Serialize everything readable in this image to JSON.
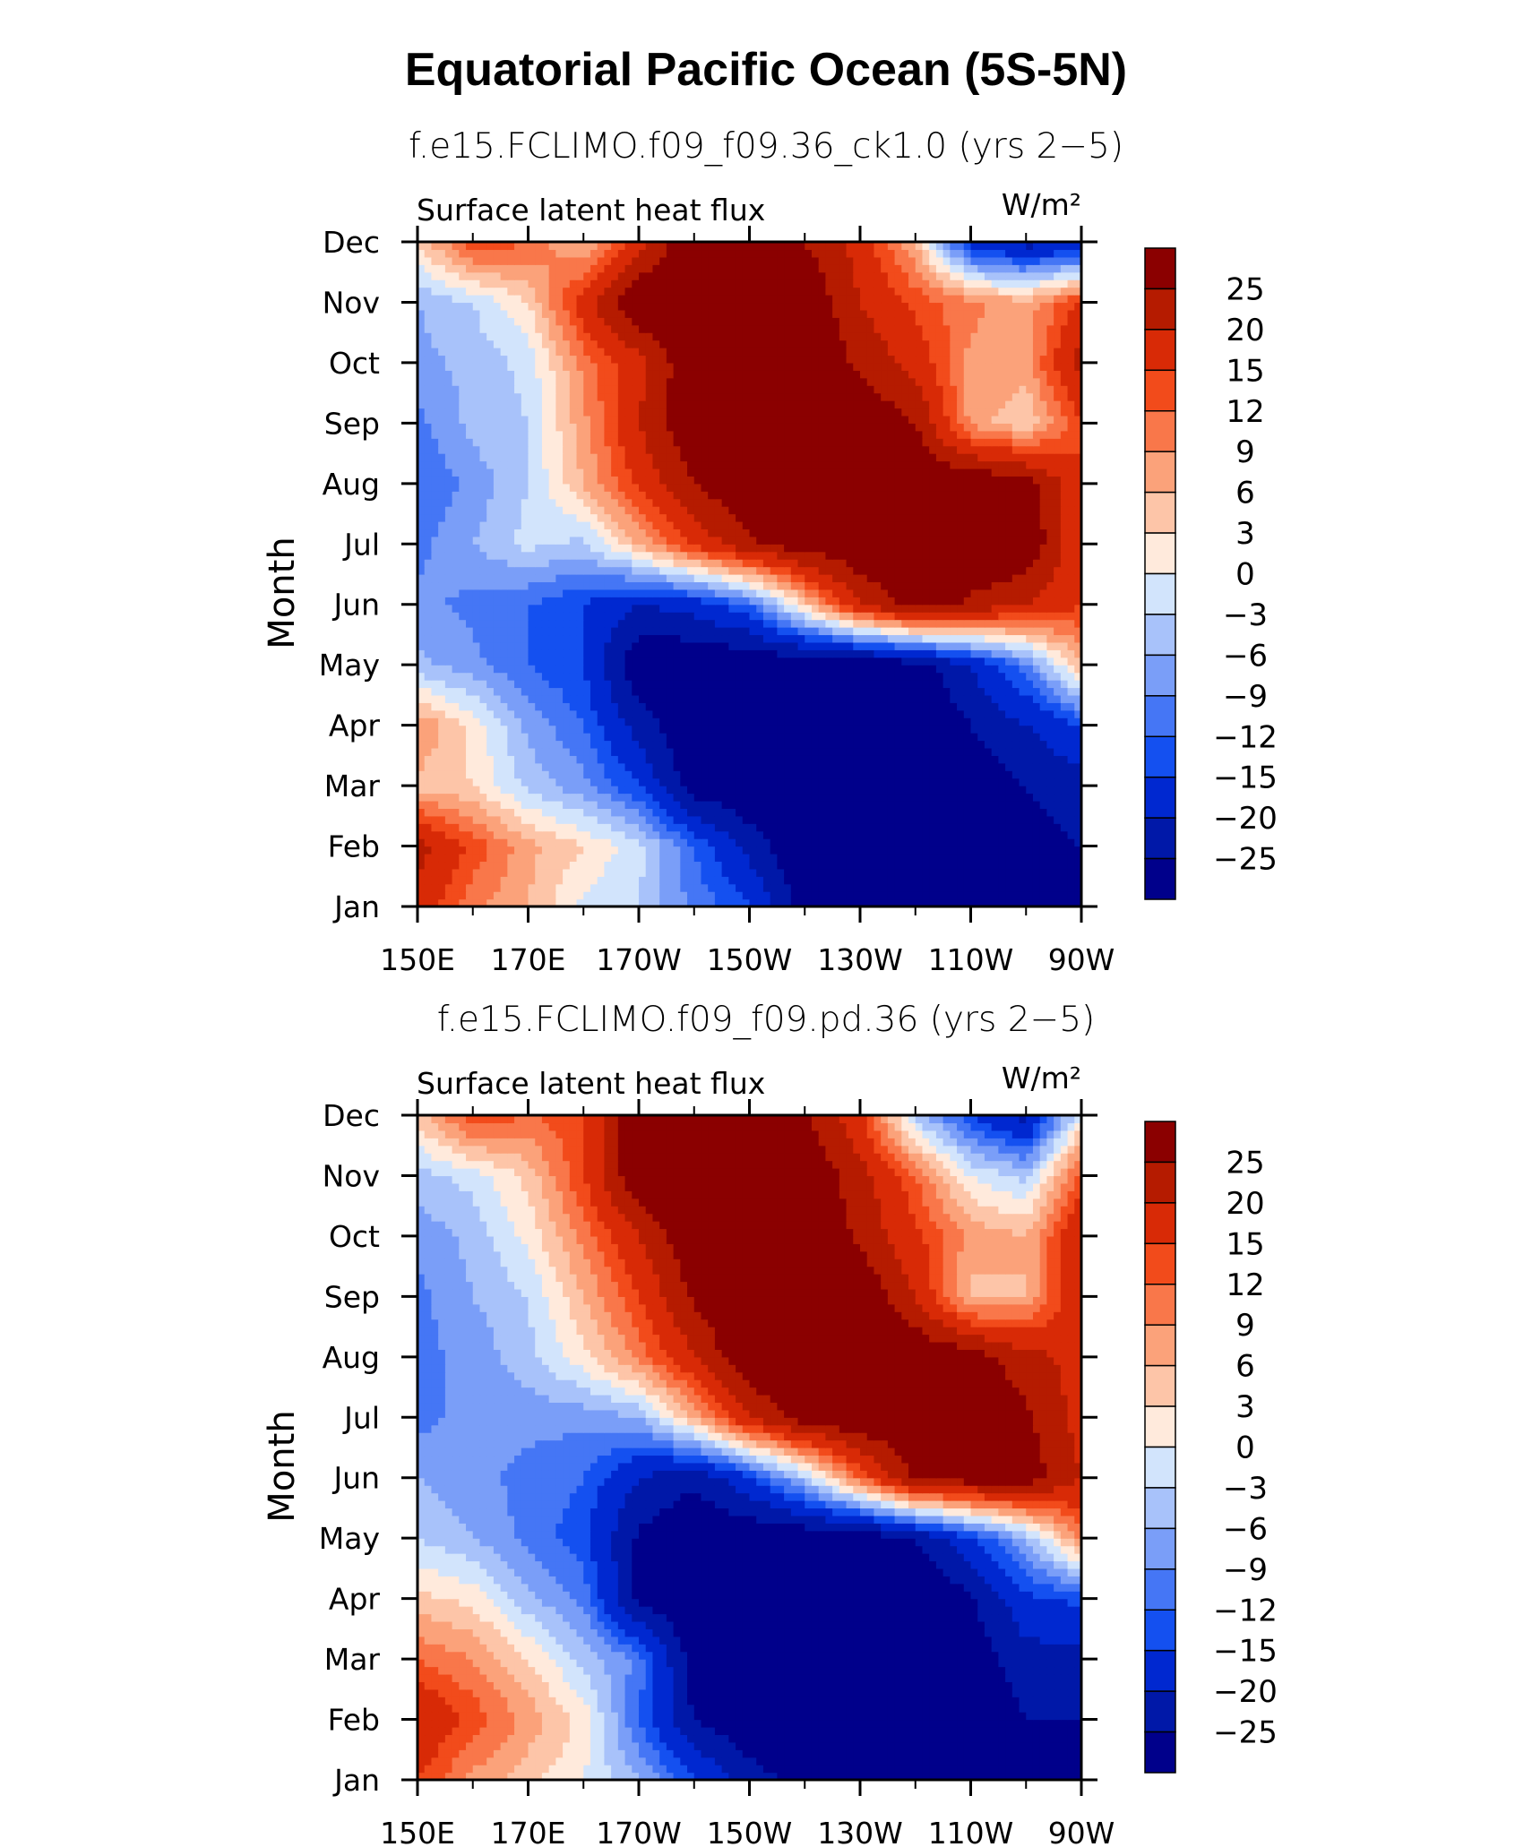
{
  "figure_title": "Equatorial Pacific Ocean (5S-5N)",
  "chart_data": [
    {
      "type": "heatmap",
      "title": "f.e15.FCLIMO.f09_f09.36_ck1.0 (yrs 2−5)",
      "left_label": "Surface latent heat flux",
      "units": "W/m²",
      "ylabel": "Month",
      "xlabel": "",
      "x_tick_labels": [
        "150E",
        "170E",
        "170W",
        "150W",
        "130W",
        "110W",
        "90W"
      ],
      "x_ticks_deg_east": [
        150,
        170,
        190,
        210,
        230,
        250,
        270
      ],
      "xlim_deg_east": [
        150,
        270
      ],
      "y_tick_labels": [
        "Jan",
        "Feb",
        "Mar",
        "Apr",
        "May",
        "Jun",
        "Jul",
        "Aug",
        "Sep",
        "Oct",
        "Nov",
        "Dec"
      ],
      "grid_x_deg_east": [
        150,
        160,
        170,
        180,
        190,
        200,
        210,
        220,
        230,
        240,
        250,
        260,
        270
      ],
      "grid_y_month": [
        "Jan",
        "Feb",
        "Mar",
        "Apr",
        "May",
        "Jun",
        "Jul",
        "Aug",
        "Sep",
        "Oct",
        "Nov",
        "Dec"
      ],
      "values": [
        [
          18,
          10,
          6,
          -1,
          -3,
          -10,
          -14,
          -28,
          -30,
          -30,
          -30,
          -30,
          -30
        ],
        [
          22,
          14,
          7,
          3,
          -2,
          -12,
          -22,
          -30,
          -30,
          -30,
          -30,
          -28,
          -25
        ],
        [
          5,
          3,
          -4,
          -8,
          -15,
          -28,
          -30,
          -30,
          -30,
          -30,
          -30,
          -25,
          -22
        ],
        [
          9,
          2,
          -7,
          -12,
          -22,
          -30,
          -30,
          -30,
          -30,
          -30,
          -25,
          -20,
          -15
        ],
        [
          -5,
          -8,
          -12,
          -15,
          -30,
          -30,
          -30,
          -30,
          -30,
          -28,
          -20,
          -10,
          6
        ],
        [
          -8,
          -10,
          -12,
          -15,
          -20,
          -18,
          -12,
          4,
          20,
          28,
          24,
          20,
          15
        ],
        [
          -10,
          -6,
          -2,
          -4,
          6,
          16,
          24,
          28,
          30,
          30,
          30,
          30,
          15
        ],
        [
          -12,
          -8,
          -3,
          6,
          16,
          25,
          30,
          30,
          30,
          30,
          30,
          28,
          15
        ],
        [
          -10,
          -5,
          -3,
          8,
          20,
          30,
          30,
          30,
          30,
          25,
          8,
          3,
          15
        ],
        [
          -7,
          -5,
          -2,
          10,
          18,
          30,
          30,
          30,
          24,
          18,
          8,
          8,
          22
        ],
        [
          -6,
          -3,
          3,
          18,
          30,
          30,
          30,
          30,
          20,
          14,
          10,
          7,
          16
        ],
        [
          3,
          15,
          12,
          5,
          18,
          30,
          30,
          25,
          18,
          6,
          -18,
          -22,
          -20
        ]
      ],
      "colorbar": {
        "labels": [
          "25",
          "20",
          "15",
          "12",
          "9",
          "6",
          "3",
          "0",
          "−3",
          "−6",
          "−9",
          "−12",
          "−15",
          "−20",
          "−25"
        ],
        "levels": [
          -25,
          -20,
          -15,
          -12,
          -9,
          -6,
          -3,
          0,
          3,
          6,
          9,
          12,
          15,
          20,
          25
        ],
        "colors": [
          "#00008b",
          "#0018a8",
          "#0028d0",
          "#1450f0",
          "#4576f5",
          "#7a9ef8",
          "#a8c2fa",
          "#d2e4fc",
          "#ffeadc",
          "#fdc5a8",
          "#fba27a",
          "#f9774a",
          "#f24b1b",
          "#d82a06",
          "#b51b00",
          "#8b0000"
        ]
      }
    },
    {
      "type": "heatmap",
      "title": "f.e15.FCLIMO.f09_f09.pd.36 (yrs 2−5)",
      "left_label": "Surface latent heat flux",
      "units": "W/m²",
      "ylabel": "Month",
      "xlabel": "",
      "x_tick_labels": [
        "150E",
        "170E",
        "170W",
        "150W",
        "130W",
        "110W",
        "90W"
      ],
      "x_ticks_deg_east": [
        150,
        170,
        190,
        210,
        230,
        250,
        270
      ],
      "xlim_deg_east": [
        150,
        270
      ],
      "y_tick_labels": [
        "Jan",
        "Feb",
        "Mar",
        "Apr",
        "May",
        "Jun",
        "Jul",
        "Aug",
        "Sep",
        "Oct",
        "Nov",
        "Dec"
      ],
      "grid_x_deg_east": [
        150,
        160,
        170,
        180,
        190,
        200,
        210,
        220,
        230,
        240,
        250,
        260,
        270
      ],
      "grid_y_month": [
        "Jan",
        "Feb",
        "Mar",
        "Apr",
        "May",
        "Jun",
        "Jul",
        "Aug",
        "Sep",
        "Oct",
        "Nov",
        "Dec"
      ],
      "values": [
        [
          15,
          8,
          4,
          0,
          -6,
          -14,
          -22,
          -28,
          -30,
          -30,
          -30,
          -28,
          -25
        ],
        [
          20,
          14,
          8,
          2,
          -12,
          -25,
          -30,
          -30,
          -30,
          -30,
          -30,
          -25,
          -25
        ],
        [
          12,
          9,
          3,
          -4,
          -10,
          -28,
          -30,
          -30,
          -30,
          -30,
          -28,
          -22,
          -22
        ],
        [
          4,
          2,
          -5,
          -10,
          -26,
          -30,
          -30,
          -30,
          -30,
          -30,
          -26,
          -16,
          -14
        ],
        [
          -3,
          -6,
          -10,
          -14,
          -26,
          -30,
          -30,
          -30,
          -30,
          -25,
          -16,
          -6,
          10
        ],
        [
          -6,
          -8,
          -10,
          -12,
          -20,
          -24,
          -16,
          -4,
          12,
          26,
          28,
          28,
          20
        ],
        [
          -10,
          -8,
          -8,
          -8,
          -6,
          6,
          20,
          28,
          30,
          30,
          30,
          26,
          18
        ],
        [
          -10,
          -8,
          -4,
          2,
          10,
          20,
          30,
          30,
          30,
          30,
          28,
          22,
          18
        ],
        [
          -10,
          -6,
          -3,
          6,
          15,
          26,
          30,
          30,
          30,
          20,
          5,
          6,
          20
        ],
        [
          -8,
          -5,
          1,
          10,
          20,
          30,
          30,
          30,
          24,
          16,
          8,
          6,
          20
        ],
        [
          -4,
          -2,
          4,
          15,
          30,
          30,
          30,
          30,
          22,
          12,
          0,
          -4,
          14
        ],
        [
          4,
          15,
          12,
          14,
          30,
          30,
          30,
          26,
          16,
          -4,
          -15,
          -22,
          0
        ]
      ],
      "colorbar": {
        "labels": [
          "25",
          "20",
          "15",
          "12",
          "9",
          "6",
          "3",
          "0",
          "−3",
          "−6",
          "−9",
          "−12",
          "−15",
          "−20",
          "−25"
        ],
        "levels": [
          -25,
          -20,
          -15,
          -12,
          -9,
          -6,
          -3,
          0,
          3,
          6,
          9,
          12,
          15,
          20,
          25
        ],
        "colors": [
          "#00008b",
          "#0018a8",
          "#0028d0",
          "#1450f0",
          "#4576f5",
          "#7a9ef8",
          "#a8c2fa",
          "#d2e4fc",
          "#ffeadc",
          "#fdc5a8",
          "#fba27a",
          "#f9774a",
          "#f24b1b",
          "#d82a06",
          "#b51b00",
          "#8b0000"
        ]
      }
    }
  ]
}
